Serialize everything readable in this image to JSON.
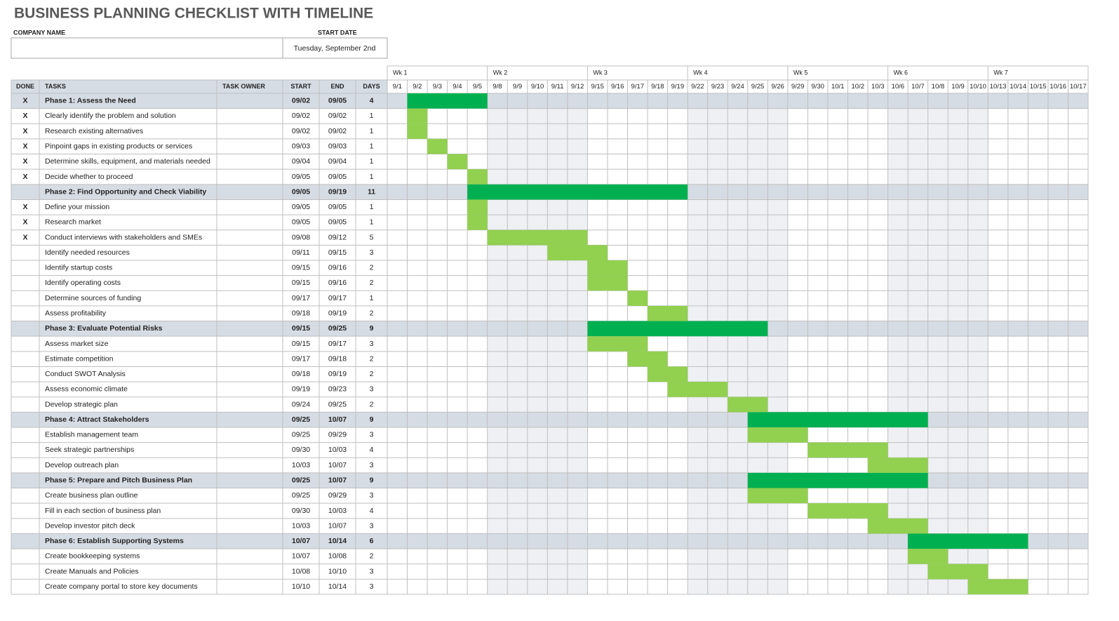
{
  "header": {
    "title": "BUSINESS PLANNING CHECKLIST WITH TIMELINE",
    "company_name_label": "COMPANY NAME",
    "start_date_label": "START DATE",
    "start_date": "Tuesday, September 2nd"
  },
  "table": {
    "columns": [
      "DONE",
      "TASKS",
      "TASK OWNER",
      "START",
      "END",
      "DAYS"
    ],
    "weeks": [
      "Wk 1",
      "Wk 2",
      "Wk 3",
      "Wk 4",
      "Wk 5",
      "Wk 6",
      "Wk 7"
    ],
    "days": [
      "9/1",
      "9/2",
      "9/3",
      "9/4",
      "9/5",
      "9/8",
      "9/9",
      "9/10",
      "9/11",
      "9/12",
      "9/15",
      "9/16",
      "9/17",
      "9/18",
      "9/19",
      "9/22",
      "9/23",
      "9/24",
      "9/25",
      "9/26",
      "9/29",
      "9/30",
      "10/1",
      "10/2",
      "10/3",
      "10/6",
      "10/7",
      "10/8",
      "10/9",
      "10/10",
      "10/13",
      "10/14",
      "10/15",
      "10/16",
      "10/17"
    ],
    "rows": [
      {
        "done": "X",
        "task": "Phase 1: Assess the Need",
        "start": "09/02",
        "end": "09/05",
        "days": 4,
        "phase": true
      },
      {
        "done": "X",
        "task": "Clearly identify the problem and solution",
        "start": "09/02",
        "end": "09/02",
        "days": 1
      },
      {
        "done": "X",
        "task": "Research existing alternatives",
        "start": "09/02",
        "end": "09/02",
        "days": 1
      },
      {
        "done": "X",
        "task": "Pinpoint gaps in existing products or services",
        "start": "09/03",
        "end": "09/03",
        "days": 1
      },
      {
        "done": "X",
        "task": "Determine skills, equipment, and materials needed",
        "start": "09/04",
        "end": "09/04",
        "days": 1
      },
      {
        "done": "X",
        "task": "Decide whether to proceed",
        "start": "09/05",
        "end": "09/05",
        "days": 1
      },
      {
        "task": "Phase 2: Find Opportunity and Check Viability",
        "start": "09/05",
        "end": "09/19",
        "days": 11,
        "phase": true
      },
      {
        "done": "X",
        "task": "Define your mission",
        "start": "09/05",
        "end": "09/05",
        "days": 1
      },
      {
        "done": "X",
        "task": "Research market",
        "start": "09/05",
        "end": "09/05",
        "days": 1
      },
      {
        "done": "X",
        "task": "Conduct interviews with stakeholders and SMEs",
        "start": "09/08",
        "end": "09/12",
        "days": 5
      },
      {
        "task": "Identify needed resources",
        "start": "09/11",
        "end": "09/15",
        "days": 3
      },
      {
        "task": "Identify startup costs",
        "start": "09/15",
        "end": "09/16",
        "days": 2
      },
      {
        "task": "Identify operating costs",
        "start": "09/15",
        "end": "09/16",
        "days": 2
      },
      {
        "task": "Determine sources of funding",
        "start": "09/17",
        "end": "09/17",
        "days": 1
      },
      {
        "task": "Assess profitability",
        "start": "09/18",
        "end": "09/19",
        "days": 2
      },
      {
        "task": "Phase 3: Evaluate Potential Risks",
        "start": "09/15",
        "end": "09/25",
        "days": 9,
        "phase": true
      },
      {
        "task": "Assess market size",
        "start": "09/15",
        "end": "09/17",
        "days": 3
      },
      {
        "task": "Estimate competition",
        "start": "09/17",
        "end": "09/18",
        "days": 2
      },
      {
        "task": "Conduct SWOT Analysis",
        "start": "09/18",
        "end": "09/19",
        "days": 2
      },
      {
        "task": "Assess economic climate",
        "start": "09/19",
        "end": "09/23",
        "days": 3
      },
      {
        "task": "Develop strategic plan",
        "start": "09/24",
        "end": "09/25",
        "days": 2
      },
      {
        "task": "Phase 4: Attract Stakeholders",
        "start": "09/25",
        "end": "10/07",
        "days": 9,
        "phase": true
      },
      {
        "task": "Establish management team",
        "start": "09/25",
        "end": "09/29",
        "days": 3
      },
      {
        "task": "Seek strategic partnerships",
        "start": "09/30",
        "end": "10/03",
        "days": 4
      },
      {
        "task": "Develop outreach plan",
        "start": "10/03",
        "end": "10/07",
        "days": 3
      },
      {
        "task": "Phase 5: Prepare and Pitch Business Plan",
        "start": "09/25",
        "end": "10/07",
        "days": 9,
        "phase": true
      },
      {
        "task": "Create business plan outline",
        "start": "09/25",
        "end": "09/29",
        "days": 3
      },
      {
        "task": "Fill in each section of business plan",
        "start": "09/30",
        "end": "10/03",
        "days": 4
      },
      {
        "task": "Develop investor pitch deck",
        "start": "10/03",
        "end": "10/07",
        "days": 3
      },
      {
        "task": "Phase 6: Establish Supporting Systems",
        "start": "10/07",
        "end": "10/14",
        "days": 6,
        "phase": true
      },
      {
        "task": "Create bookkeeping systems",
        "start": "10/07",
        "end": "10/08",
        "days": 2
      },
      {
        "task": "Create Manuals and Policies",
        "start": "10/08",
        "end": "10/10",
        "days": 3
      },
      {
        "task": "Create company portal to store key documents",
        "start": "10/10",
        "end": "10/14",
        "days": 3
      }
    ]
  },
  "colors": {
    "phase_bar": "#00b050",
    "task_bar": "#92d050"
  }
}
